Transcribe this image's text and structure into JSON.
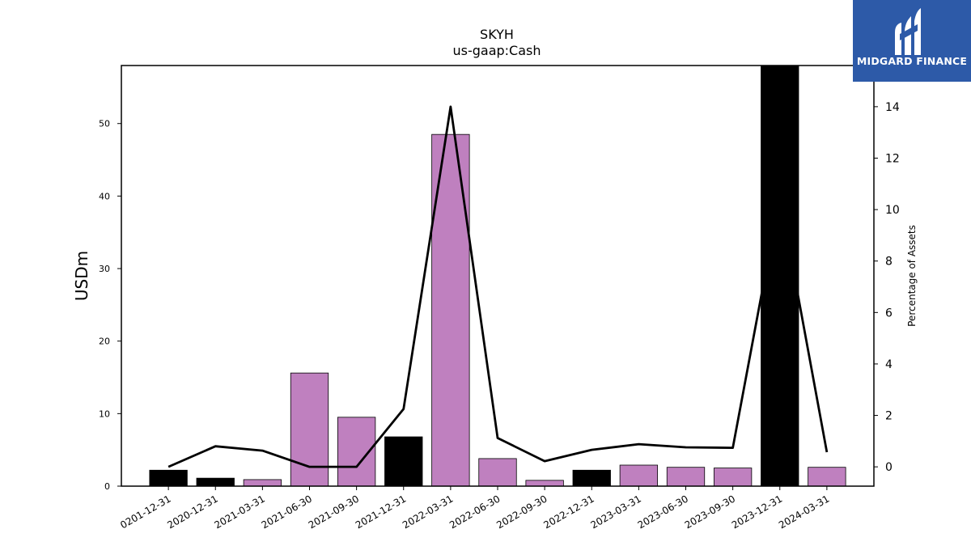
{
  "brand": {
    "name": "MIDGARD FINANCE",
    "logo_color": "#2d5aa8"
  },
  "chart_data": {
    "type": "bar",
    "title": "SKYH",
    "subtitle": "us-gaap:Cash",
    "ylabel": "USDm",
    "y2label": "Percentage of Assets",
    "categories": [
      "0201-12-31",
      "2020-12-31",
      "2021-03-31",
      "2021-06-30",
      "2021-09-30",
      "2021-12-31",
      "2022-03-31",
      "2022-06-30",
      "2022-09-30",
      "2022-12-31",
      "2023-03-31",
      "2023-06-30",
      "2023-09-30",
      "2023-12-31",
      "2024-03-31"
    ],
    "series": [
      {
        "kind": "bar",
        "axis": "left",
        "values": [
          2.2,
          1.1,
          0.9,
          15.6,
          9.5,
          6.8,
          48.5,
          3.8,
          0.8,
          2.2,
          2.9,
          2.6,
          2.5,
          58.0,
          2.6
        ],
        "colors": [
          "#000000",
          "#000000",
          "#bf80bf",
          "#bf80bf",
          "#bf80bf",
          "#000000",
          "#bf80bf",
          "#bf80bf",
          "#bf80bf",
          "#000000",
          "#bf80bf",
          "#bf80bf",
          "#bf80bf",
          "#000000",
          "#bf80bf"
        ]
      },
      {
        "kind": "line",
        "axis": "right",
        "color": "#000000",
        "values": [
          0.0,
          0.8,
          0.63,
          0.0,
          0.0,
          2.25,
          14.0,
          1.12,
          0.22,
          0.66,
          0.88,
          0.76,
          0.74,
          10.5,
          0.57
        ]
      }
    ],
    "ylim": [
      0,
      58
    ],
    "yticks": [
      0,
      10,
      20,
      30,
      40,
      50
    ],
    "y2lim": [
      -0.75,
      15.6
    ],
    "y2ticks": [
      0,
      2,
      4,
      6,
      8,
      10,
      12,
      14
    ],
    "grid": false
  }
}
